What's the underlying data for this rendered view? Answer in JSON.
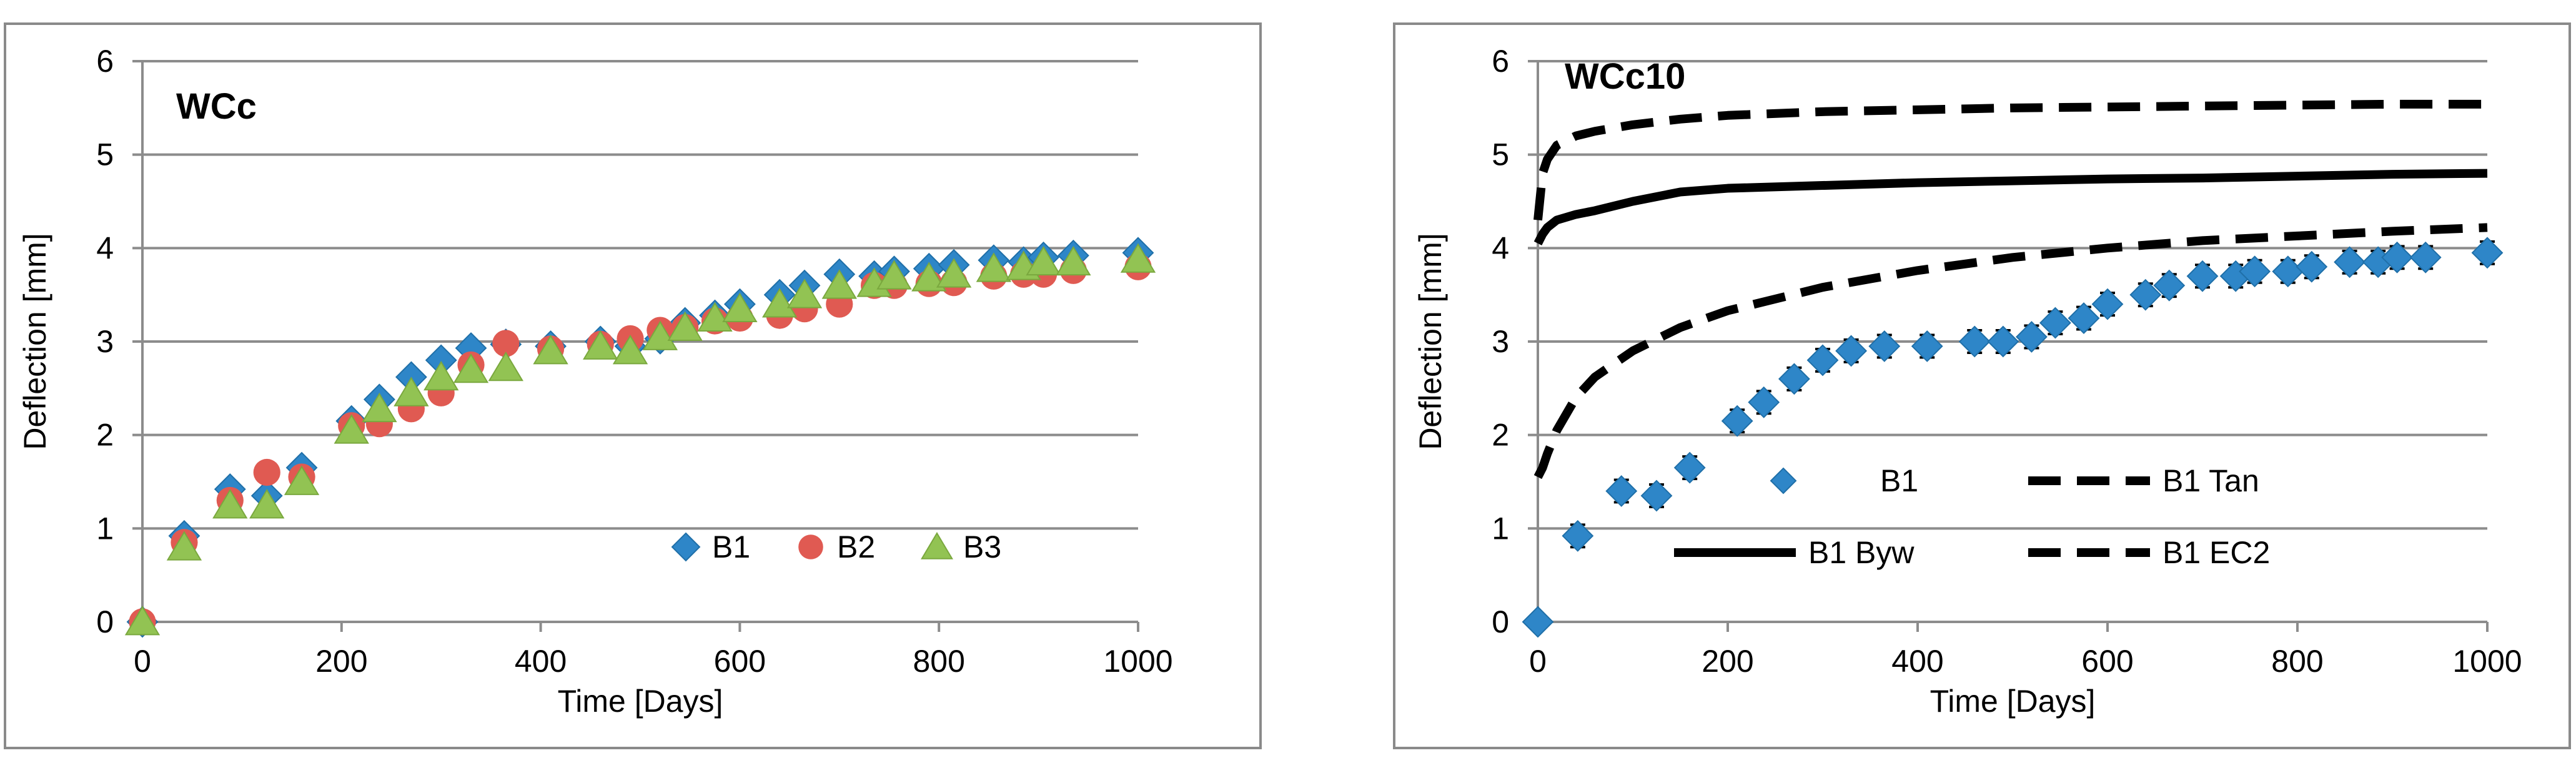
{
  "chart_data": [
    {
      "type": "scatter",
      "title": "WCc",
      "xlabel": "Time [Days]",
      "ylabel": "Deflection [mm]",
      "xlim": [
        0,
        1000
      ],
      "ylim": [
        0,
        6
      ],
      "xticks": [
        0,
        200,
        400,
        600,
        800,
        1000
      ],
      "yticks": [
        0,
        1,
        2,
        3,
        4,
        5,
        6
      ],
      "grid": true,
      "legend": "bottom-right",
      "series": [
        {
          "name": "B1",
          "marker": "diamond",
          "color": "#2e86c8",
          "x": [
            0,
            42,
            88,
            125,
            160,
            210,
            238,
            270,
            300,
            330,
            365,
            410,
            460,
            490,
            520,
            545,
            575,
            600,
            640,
            665,
            700,
            735,
            755,
            790,
            815,
            855,
            885,
            905,
            935,
            1000
          ],
          "y": [
            0,
            0.92,
            1.42,
            1.35,
            1.65,
            2.15,
            2.38,
            2.62,
            2.8,
            2.93,
            2.97,
            2.95,
            3.0,
            2.95,
            3.03,
            3.2,
            3.28,
            3.4,
            3.5,
            3.6,
            3.72,
            3.7,
            3.75,
            3.78,
            3.82,
            3.87,
            3.85,
            3.9,
            3.92,
            3.95
          ]
        },
        {
          "name": "B2",
          "marker": "circle",
          "color": "#e05a52",
          "x": [
            0,
            42,
            88,
            125,
            160,
            210,
            238,
            270,
            300,
            330,
            365,
            410,
            460,
            490,
            520,
            545,
            575,
            600,
            640,
            665,
            700,
            735,
            755,
            790,
            815,
            855,
            885,
            905,
            935,
            1000
          ],
          "y": [
            0,
            0.85,
            1.3,
            1.6,
            1.55,
            2.1,
            2.12,
            2.28,
            2.45,
            2.75,
            2.98,
            2.92,
            2.97,
            3.03,
            3.12,
            3.15,
            3.22,
            3.25,
            3.28,
            3.35,
            3.4,
            3.6,
            3.6,
            3.62,
            3.63,
            3.7,
            3.72,
            3.72,
            3.76,
            3.8
          ]
        },
        {
          "name": "B3",
          "marker": "triangle",
          "color": "#92c353",
          "x": [
            0,
            42,
            88,
            125,
            160,
            210,
            238,
            270,
            300,
            330,
            365,
            410,
            460,
            490,
            520,
            545,
            575,
            600,
            640,
            665,
            700,
            735,
            755,
            790,
            815,
            855,
            885,
            905,
            935,
            1000
          ],
          "y": [
            0,
            0.8,
            1.25,
            1.25,
            1.5,
            2.05,
            2.28,
            2.45,
            2.62,
            2.7,
            2.72,
            2.9,
            2.95,
            2.9,
            3.05,
            3.15,
            3.25,
            3.35,
            3.4,
            3.5,
            3.6,
            3.62,
            3.7,
            3.68,
            3.72,
            3.78,
            3.8,
            3.85,
            3.85,
            3.88
          ]
        }
      ]
    },
    {
      "type": "scatter",
      "title": "WCc10",
      "xlabel": "Time [Days]",
      "ylabel": "Deflection [mm]",
      "xlim": [
        0,
        1000
      ],
      "ylim": [
        0,
        6
      ],
      "xticks": [
        0,
        200,
        400,
        600,
        800,
        1000
      ],
      "yticks": [
        0,
        1,
        2,
        3,
        4,
        5,
        6
      ],
      "grid": true,
      "legend": "bottom",
      "series": [
        {
          "name": "B1",
          "marker": "diamond",
          "color": "#2e86c8",
          "error_bars": true,
          "x": [
            0,
            42,
            88,
            125,
            160,
            210,
            238,
            270,
            300,
            330,
            365,
            410,
            460,
            490,
            520,
            545,
            575,
            600,
            640,
            665,
            700,
            735,
            755,
            790,
            815,
            855,
            885,
            905,
            935,
            1000
          ],
          "y": [
            0,
            0.92,
            1.4,
            1.35,
            1.65,
            2.15,
            2.35,
            2.6,
            2.8,
            2.9,
            2.95,
            2.95,
            3.0,
            3.0,
            3.05,
            3.2,
            3.25,
            3.4,
            3.5,
            3.6,
            3.7,
            3.7,
            3.75,
            3.75,
            3.8,
            3.85,
            3.85,
            3.9,
            3.9,
            3.95
          ],
          "err": [
            0,
            0.12,
            0.12,
            0.12,
            0.12,
            0.12,
            0.12,
            0.12,
            0.12,
            0.12,
            0.12,
            0.12,
            0.12,
            0.12,
            0.12,
            0.12,
            0.12,
            0.12,
            0.12,
            0.12,
            0.12,
            0.12,
            0.12,
            0.12,
            0.12,
            0.12,
            0.12,
            0.12,
            0.12,
            0.12
          ]
        },
        {
          "name": "B1 Tan",
          "style": "dashed",
          "color": "#000000",
          "x": [
            0,
            5,
            10,
            20,
            40,
            60,
            100,
            150,
            200,
            300,
            400,
            500,
            600,
            700,
            800,
            900,
            1000
          ],
          "y": [
            4.3,
            4.8,
            4.95,
            5.1,
            5.2,
            5.25,
            5.32,
            5.38,
            5.42,
            5.46,
            5.48,
            5.5,
            5.51,
            5.52,
            5.53,
            5.54,
            5.54
          ]
        },
        {
          "name": "B1 Byw",
          "style": "solid",
          "color": "#000000",
          "x": [
            0,
            5,
            10,
            20,
            40,
            60,
            100,
            150,
            200,
            300,
            400,
            500,
            600,
            700,
            800,
            900,
            1000
          ],
          "y": [
            4.05,
            4.15,
            4.22,
            4.3,
            4.36,
            4.4,
            4.5,
            4.6,
            4.64,
            4.67,
            4.7,
            4.72,
            4.74,
            4.75,
            4.77,
            4.79,
            4.8
          ]
        },
        {
          "name": "B1 EC2",
          "style": "dashed",
          "color": "#000000",
          "x": [
            0,
            5,
            10,
            20,
            40,
            60,
            100,
            150,
            200,
            300,
            400,
            500,
            600,
            700,
            800,
            900,
            1000
          ],
          "y": [
            1.55,
            1.65,
            1.8,
            2.05,
            2.4,
            2.62,
            2.9,
            3.15,
            3.33,
            3.58,
            3.76,
            3.9,
            4.0,
            4.08,
            4.13,
            4.18,
            4.22
          ]
        }
      ]
    }
  ]
}
